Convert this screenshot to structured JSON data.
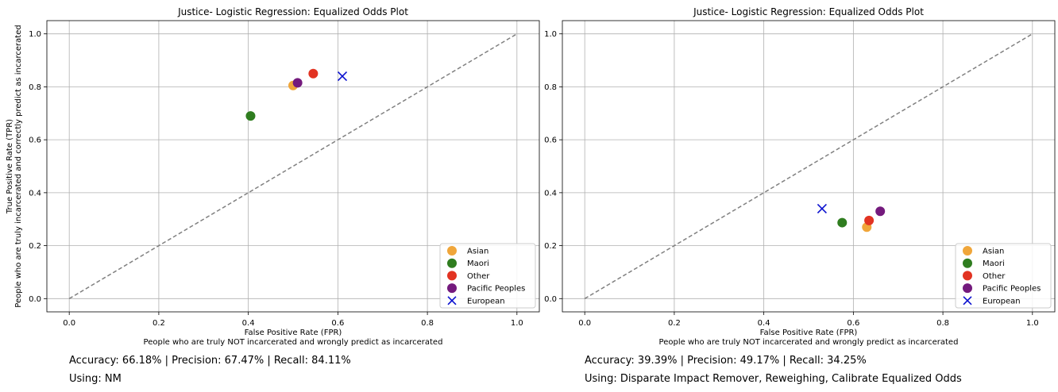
{
  "colors": {
    "Asian": "#f0a63a",
    "Maori": "#2f7d1f",
    "Other": "#e23322",
    "Pacific Peoples": "#741a7d",
    "European": "#0a10cf",
    "diagonal": "#808080",
    "grid": "#b0b0b0"
  },
  "chart_data": [
    {
      "type": "scatter",
      "title": "Justice- Logistic Regression: Equalized Odds Plot",
      "xlabel_line1": "False Positive Rate (FPR)",
      "xlabel_line2": "People who are truly NOT incarcerated and wrongly predict as incarcerated",
      "ylabel_line1": "True Positive Rate (TPR)",
      "ylabel_line2": "People who are truly incarcerated and correctly predict as incarcerated",
      "xlim": [
        -0.05,
        1.05
      ],
      "ylim": [
        -0.05,
        1.05
      ],
      "xticks": [
        "0.0",
        "0.2",
        "0.4",
        "0.6",
        "0.8",
        "1.0"
      ],
      "yticks": [
        "0.0",
        "0.2",
        "0.4",
        "0.6",
        "0.8",
        "1.0"
      ],
      "grid": true,
      "legend_position": "lower-right",
      "diagonal": [
        [
          0,
          0
        ],
        [
          1,
          1
        ]
      ],
      "series": [
        {
          "name": "Asian",
          "marker": "circle",
          "x": 0.5,
          "y": 0.805
        },
        {
          "name": "Maori",
          "marker": "circle",
          "x": 0.405,
          "y": 0.69
        },
        {
          "name": "Other",
          "marker": "circle",
          "x": 0.545,
          "y": 0.85
        },
        {
          "name": "Pacific Peoples",
          "marker": "circle",
          "x": 0.51,
          "y": 0.815
        },
        {
          "name": "European",
          "marker": "x",
          "x": 0.61,
          "y": 0.84
        }
      ],
      "metrics": "Accuracy: 66.18% | Precision: 67.47% | Recall: 84.11%",
      "using": "Using: NM"
    },
    {
      "type": "scatter",
      "title": "Justice- Logistic Regression: Equalized Odds Plot",
      "xlabel_line1": "False Positive Rate (FPR)",
      "xlabel_line2": "People who are truly NOT incarcerated and wrongly predict as incarcerated",
      "ylabel_line1": "",
      "ylabel_line2": "",
      "xlim": [
        -0.05,
        1.05
      ],
      "ylim": [
        -0.05,
        1.05
      ],
      "xticks": [
        "0.0",
        "0.2",
        "0.4",
        "0.6",
        "0.8",
        "1.0"
      ],
      "yticks": [
        "0.0",
        "0.2",
        "0.4",
        "0.6",
        "0.8",
        "1.0"
      ],
      "grid": true,
      "legend_position": "lower-right",
      "diagonal": [
        [
          0,
          0
        ],
        [
          1,
          1
        ]
      ],
      "series": [
        {
          "name": "Asian",
          "marker": "circle",
          "x": 0.63,
          "y": 0.27
        },
        {
          "name": "Maori",
          "marker": "circle",
          "x": 0.575,
          "y": 0.287
        },
        {
          "name": "Other",
          "marker": "circle",
          "x": 0.635,
          "y": 0.295
        },
        {
          "name": "Pacific Peoples",
          "marker": "circle",
          "x": 0.66,
          "y": 0.33
        },
        {
          "name": "European",
          "marker": "x",
          "x": 0.53,
          "y": 0.34
        }
      ],
      "metrics": "Accuracy: 39.39% | Precision: 49.17% | Recall: 34.25%",
      "using": "Using: Disparate Impact Remover, Reweighing, Calibrate Equalized Odds"
    }
  ]
}
